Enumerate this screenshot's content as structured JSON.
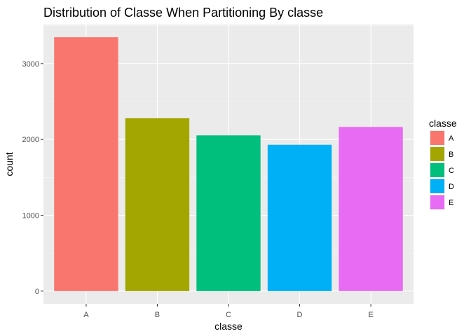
{
  "chart_data": {
    "type": "bar",
    "title": "Distribution of Classe When Partitioning By classe",
    "xlabel": "classe",
    "ylabel": "count",
    "categories": [
      "A",
      "B",
      "C",
      "D",
      "E"
    ],
    "values": [
      3348,
      2279,
      2054,
      1930,
      2165
    ],
    "colors": [
      "#F8766D",
      "#A3A500",
      "#00BF7D",
      "#00B0F6",
      "#E76BF3"
    ],
    "yticks": [
      0,
      1000,
      2000,
      3000
    ],
    "ytick_labels": [
      "0",
      "1000",
      "2000",
      "3000"
    ],
    "ylim": [
      -167.4,
      3515.4
    ],
    "grid": true,
    "legend": {
      "title": "classe",
      "position": "right",
      "labels": [
        "A",
        "B",
        "C",
        "D",
        "E"
      ]
    }
  },
  "colors": {
    "panel_background": "#EBEBEB",
    "grid_major": "#FFFFFF",
    "grid_minor": "#F5F5F5"
  }
}
